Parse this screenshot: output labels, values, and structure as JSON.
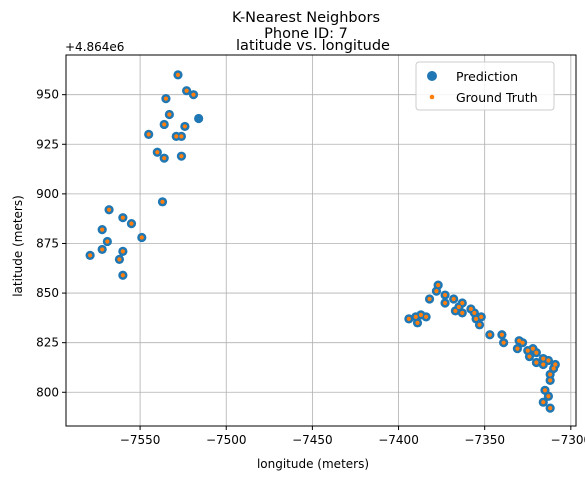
{
  "chart_data": {
    "type": "scatter",
    "suptitle": "K-Nearest Neighbors",
    "suptitle2": "Phone ID: 7",
    "title": "latitude vs. longitude",
    "xlabel": "longitude (meters)",
    "ylabel": "latitude (meters)",
    "y_offset_label": "+4.864e6",
    "xlim": [
      -7593,
      -7297
    ],
    "ylim": [
      783,
      970
    ],
    "xticks": [
      -7550,
      -7500,
      -7450,
      -7400,
      -7350,
      -7300
    ],
    "xtick_labels": [
      "−7550",
      "−7500",
      "−7450",
      "−7400",
      "−7350",
      "−7300"
    ],
    "yticks": [
      800,
      825,
      850,
      875,
      900,
      925,
      950
    ],
    "ytick_labels": [
      "800",
      "825",
      "850",
      "875",
      "900",
      "925",
      "950"
    ],
    "grid": true,
    "legend_position": "top-right",
    "colors": {
      "prediction": "#1f77b4",
      "ground_truth": "#ff7f0e"
    },
    "series": [
      {
        "name": "Prediction",
        "marker": "large-circle",
        "points": [
          [
            -7528,
            960
          ],
          [
            -7523,
            952
          ],
          [
            -7519,
            950
          ],
          [
            -7535,
            948
          ],
          [
            -7533,
            940
          ],
          [
            -7516,
            938
          ],
          [
            -7536,
            935
          ],
          [
            -7524,
            934
          ],
          [
            -7545,
            930
          ],
          [
            -7529,
            929
          ],
          [
            -7526,
            929
          ],
          [
            -7540,
            921
          ],
          [
            -7526,
            919
          ],
          [
            -7536,
            918
          ],
          [
            -7537,
            896
          ],
          [
            -7568,
            892
          ],
          [
            -7560,
            888
          ],
          [
            -7555,
            885
          ],
          [
            -7572,
            882
          ],
          [
            -7549,
            878
          ],
          [
            -7569,
            876
          ],
          [
            -7560,
            871
          ],
          [
            -7572,
            872
          ],
          [
            -7579,
            869
          ],
          [
            -7562,
            867
          ],
          [
            -7560,
            859
          ],
          [
            -7377,
            854
          ],
          [
            -7378,
            851
          ],
          [
            -7373,
            849
          ],
          [
            -7368,
            847
          ],
          [
            -7382,
            847
          ],
          [
            -7363,
            845
          ],
          [
            -7373,
            845
          ],
          [
            -7365,
            843
          ],
          [
            -7358,
            842
          ],
          [
            -7367,
            841
          ],
          [
            -7356,
            840
          ],
          [
            -7363,
            840
          ],
          [
            -7387,
            839
          ],
          [
            -7384,
            838
          ],
          [
            -7352,
            838
          ],
          [
            -7355,
            837
          ],
          [
            -7394,
            837
          ],
          [
            -7390,
            838
          ],
          [
            -7389,
            835
          ],
          [
            -7353,
            834
          ],
          [
            -7347,
            829
          ],
          [
            -7340,
            829
          ],
          [
            -7330,
            826
          ],
          [
            -7339,
            825
          ],
          [
            -7328,
            825
          ],
          [
            -7325,
            821
          ],
          [
            -7322,
            822
          ],
          [
            -7331,
            822
          ],
          [
            -7320,
            820
          ],
          [
            -7324,
            818
          ],
          [
            -7316,
            817
          ],
          [
            -7313,
            816
          ],
          [
            -7320,
            815
          ],
          [
            -7316,
            814
          ],
          [
            -7309,
            814
          ],
          [
            -7310,
            812
          ],
          [
            -7312,
            809
          ],
          [
            -7312,
            806
          ],
          [
            -7315,
            801
          ],
          [
            -7313,
            798
          ],
          [
            -7316,
            795
          ],
          [
            -7312,
            792
          ]
        ]
      },
      {
        "name": "Ground Truth",
        "marker": "small-dot",
        "points": [
          [
            -7528,
            960
          ],
          [
            -7523,
            952
          ],
          [
            -7519,
            950
          ],
          [
            -7535,
            948
          ],
          [
            -7533,
            940
          ],
          [
            -7536,
            935
          ],
          [
            -7524,
            934
          ],
          [
            -7545,
            930
          ],
          [
            -7529,
            929
          ],
          [
            -7526,
            929
          ],
          [
            -7540,
            921
          ],
          [
            -7526,
            919
          ],
          [
            -7536,
            918
          ],
          [
            -7537,
            896
          ],
          [
            -7568,
            892
          ],
          [
            -7560,
            888
          ],
          [
            -7555,
            885
          ],
          [
            -7572,
            882
          ],
          [
            -7549,
            878
          ],
          [
            -7569,
            876
          ],
          [
            -7560,
            871
          ],
          [
            -7572,
            872
          ],
          [
            -7579,
            869
          ],
          [
            -7562,
            867
          ],
          [
            -7560,
            859
          ],
          [
            -7377,
            854
          ],
          [
            -7378,
            851
          ],
          [
            -7373,
            849
          ],
          [
            -7368,
            847
          ],
          [
            -7382,
            847
          ],
          [
            -7363,
            845
          ],
          [
            -7373,
            845
          ],
          [
            -7365,
            843
          ],
          [
            -7358,
            842
          ],
          [
            -7367,
            841
          ],
          [
            -7356,
            840
          ],
          [
            -7363,
            840
          ],
          [
            -7387,
            839
          ],
          [
            -7384,
            838
          ],
          [
            -7352,
            838
          ],
          [
            -7355,
            837
          ],
          [
            -7394,
            837
          ],
          [
            -7390,
            838
          ],
          [
            -7389,
            835
          ],
          [
            -7353,
            834
          ],
          [
            -7347,
            829
          ],
          [
            -7340,
            829
          ],
          [
            -7330,
            826
          ],
          [
            -7339,
            825
          ],
          [
            -7328,
            825
          ],
          [
            -7325,
            821
          ],
          [
            -7322,
            822
          ],
          [
            -7331,
            822
          ],
          [
            -7320,
            820
          ],
          [
            -7324,
            818
          ],
          [
            -7316,
            817
          ],
          [
            -7313,
            816
          ],
          [
            -7320,
            815
          ],
          [
            -7316,
            814
          ],
          [
            -7309,
            814
          ],
          [
            -7310,
            812
          ],
          [
            -7312,
            809
          ],
          [
            -7312,
            806
          ],
          [
            -7315,
            801
          ],
          [
            -7313,
            798
          ],
          [
            -7316,
            795
          ],
          [
            -7312,
            792
          ]
        ]
      }
    ]
  }
}
